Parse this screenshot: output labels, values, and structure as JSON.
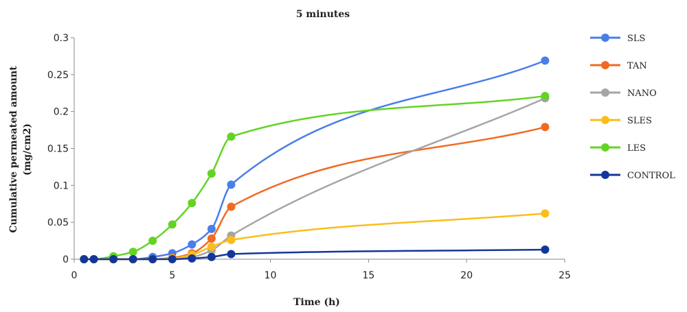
{
  "chart_data": {
    "type": "line",
    "title": "5 minutes",
    "xlabel": "Time (h)",
    "ylabel": [
      "Cumulative permeated amount",
      "(mg/cm2)"
    ],
    "xlim": [
      0,
      25
    ],
    "ylim": [
      0,
      0.3
    ],
    "xticks": [
      0,
      5,
      10,
      15,
      20,
      25
    ],
    "yticks": [
      0,
      0.05,
      0.1,
      0.15,
      0.2,
      0.25,
      0.3
    ],
    "xtick_labels": [
      "0",
      "5",
      "10",
      "15",
      "20",
      "25"
    ],
    "ytick_labels": [
      "0",
      "0.05",
      "0.1",
      "0.15",
      "0.2",
      "0.25",
      "0.3"
    ],
    "grid": false,
    "legend_position": "right",
    "series": [
      {
        "name": "SLS",
        "color": "#4a7ee8",
        "points": [
          [
            0.5,
            0
          ],
          [
            1,
            0
          ],
          [
            2,
            0
          ],
          [
            3,
            0
          ],
          [
            4,
            0.003
          ],
          [
            5,
            0.008
          ],
          [
            6,
            0.02
          ],
          [
            7,
            0.041
          ],
          [
            8,
            0.101
          ],
          [
            24,
            0.269
          ]
        ]
      },
      {
        "name": "TAN",
        "color": "#f06a22",
        "points": [
          [
            0.5,
            0
          ],
          [
            1,
            0
          ],
          [
            2,
            0
          ],
          [
            3,
            0
          ],
          [
            4,
            0
          ],
          [
            5,
            0.002
          ],
          [
            6,
            0.008
          ],
          [
            7,
            0.028
          ],
          [
            8,
            0.071
          ],
          [
            24,
            0.179
          ]
        ]
      },
      {
        "name": "NANO",
        "color": "#a5a5a5",
        "points": [
          [
            0.5,
            0
          ],
          [
            1,
            0
          ],
          [
            2,
            0
          ],
          [
            3,
            0
          ],
          [
            4,
            0
          ],
          [
            5,
            0.001
          ],
          [
            6,
            0.003
          ],
          [
            7,
            0.012
          ],
          [
            8,
            0.032
          ],
          [
            24,
            0.218
          ]
        ]
      },
      {
        "name": "SLES",
        "color": "#fbbd1a",
        "points": [
          [
            0.5,
            0
          ],
          [
            1,
            0
          ],
          [
            2,
            0
          ],
          [
            3,
            0
          ],
          [
            4,
            0
          ],
          [
            5,
            0.001
          ],
          [
            6,
            0.006
          ],
          [
            7,
            0.017
          ],
          [
            8,
            0.026
          ],
          [
            24,
            0.062
          ]
        ]
      },
      {
        "name": "LES",
        "color": "#62d423",
        "points": [
          [
            0.5,
            0
          ],
          [
            1,
            0
          ],
          [
            2,
            0.004
          ],
          [
            3,
            0.01
          ],
          [
            4,
            0.025
          ],
          [
            5,
            0.047
          ],
          [
            6,
            0.076
          ],
          [
            7,
            0.116
          ],
          [
            8,
            0.166
          ],
          [
            24,
            0.221
          ]
        ]
      },
      {
        "name": "CONTROL",
        "color": "#14369a",
        "points": [
          [
            0.5,
            0
          ],
          [
            1,
            0
          ],
          [
            2,
            0
          ],
          [
            3,
            0
          ],
          [
            4,
            0
          ],
          [
            5,
            0
          ],
          [
            6,
            0.001
          ],
          [
            7,
            0.003
          ],
          [
            8,
            0.007
          ],
          [
            24,
            0.013
          ]
        ]
      }
    ]
  }
}
